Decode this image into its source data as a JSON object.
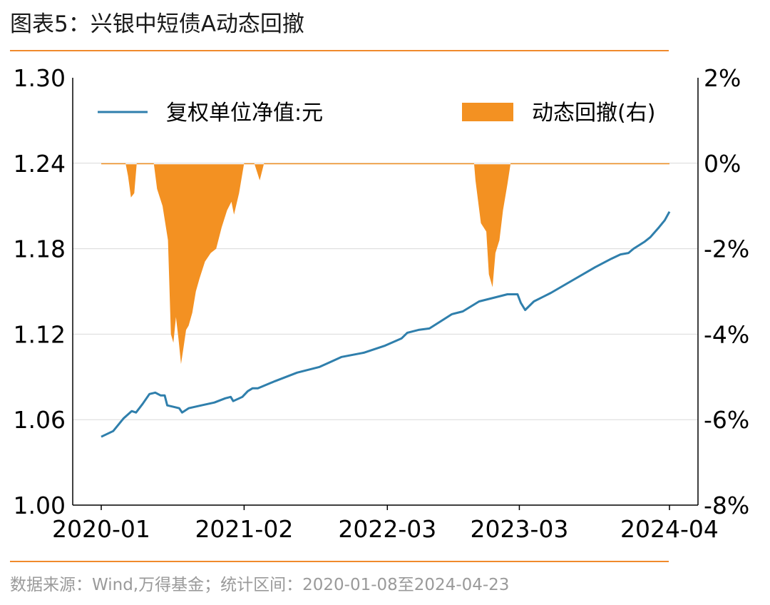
{
  "title": "图表5：兴银中短债A动态回撤",
  "source": "数据来源：Wind,万得基金；统计区间：2020-01-08至2024-04-23",
  "colors": {
    "nav_line": "#2f7fac",
    "drawdown_fill": "#f39122",
    "rule": "#f08a2c"
  },
  "chart_data": {
    "type": "line",
    "x_axis": {
      "type": "date",
      "range": [
        "2020-01-08",
        "2024-04-23"
      ],
      "tick_labels": [
        "2020-01",
        "2021-02",
        "2022-03",
        "2023-03",
        "2024-04"
      ],
      "tick_dates": [
        "2020-01-08",
        "2021-02-05",
        "2022-03-07",
        "2023-03-06",
        "2024-04-23"
      ]
    },
    "y_left": {
      "range": [
        1.0,
        1.3
      ],
      "ticks": [
        "1.00",
        "1.06",
        "1.12",
        "1.18",
        "1.24",
        "1.30"
      ]
    },
    "y_right": {
      "range": [
        -8,
        2
      ],
      "ticks": [
        "-8%",
        "-6%",
        "-4%",
        "-2%",
        "0%",
        "2%"
      ]
    },
    "grid": "horizontal",
    "legend": {
      "position": "top",
      "entries": [
        "复权单位净值:元",
        "动态回撤(右)"
      ]
    },
    "series": [
      {
        "name": "复权单位净值:元",
        "kind": "line",
        "axis": "left",
        "points": [
          [
            "2020-01-08",
            1.048
          ],
          [
            "2020-02-10",
            1.052
          ],
          [
            "2020-03-10",
            1.061
          ],
          [
            "2020-04-01",
            1.066
          ],
          [
            "2020-04-13",
            1.065
          ],
          [
            "2020-05-01",
            1.071
          ],
          [
            "2020-05-20",
            1.078
          ],
          [
            "2020-06-05",
            1.079
          ],
          [
            "2020-06-20",
            1.077
          ],
          [
            "2020-07-01",
            1.077
          ],
          [
            "2020-07-08",
            1.07
          ],
          [
            "2020-07-25",
            1.069
          ],
          [
            "2020-08-10",
            1.068
          ],
          [
            "2020-08-18",
            1.065
          ],
          [
            "2020-09-05",
            1.068
          ],
          [
            "2020-10-10",
            1.07
          ],
          [
            "2020-11-15",
            1.072
          ],
          [
            "2020-12-15",
            1.075
          ],
          [
            "2020-12-30",
            1.076
          ],
          [
            "2021-01-06",
            1.073
          ],
          [
            "2021-01-31",
            1.076
          ],
          [
            "2021-02-15",
            1.08
          ],
          [
            "2021-02-28",
            1.082
          ],
          [
            "2021-03-15",
            1.082
          ],
          [
            "2021-05-01",
            1.087
          ],
          [
            "2021-07-01",
            1.093
          ],
          [
            "2021-09-01",
            1.097
          ],
          [
            "2021-11-01",
            1.104
          ],
          [
            "2022-01-01",
            1.107
          ],
          [
            "2022-03-01",
            1.112
          ],
          [
            "2022-04-15",
            1.117
          ],
          [
            "2022-05-01",
            1.121
          ],
          [
            "2022-06-01",
            1.123
          ],
          [
            "2022-07-01",
            1.124
          ],
          [
            "2022-08-01",
            1.129
          ],
          [
            "2022-09-01",
            1.134
          ],
          [
            "2022-10-01",
            1.136
          ],
          [
            "2022-11-15",
            1.143
          ],
          [
            "2023-01-01",
            1.146
          ],
          [
            "2023-02-01",
            1.148
          ],
          [
            "2023-03-01",
            1.148
          ],
          [
            "2023-03-10",
            1.142
          ],
          [
            "2023-03-22",
            1.137
          ],
          [
            "2023-04-15",
            1.143
          ],
          [
            "2023-06-01",
            1.149
          ],
          [
            "2023-08-01",
            1.158
          ],
          [
            "2023-10-01",
            1.167
          ],
          [
            "2023-11-15",
            1.173
          ],
          [
            "2023-12-10",
            1.176
          ],
          [
            "2024-01-01",
            1.177
          ],
          [
            "2024-01-15",
            1.18
          ],
          [
            "2024-02-15",
            1.185
          ],
          [
            "2024-03-01",
            1.188
          ],
          [
            "2024-03-25",
            1.195
          ],
          [
            "2024-04-10",
            1.2
          ],
          [
            "2024-04-23",
            1.206
          ]
        ]
      },
      {
        "name": "动态回撤(右)",
        "kind": "area",
        "axis": "right",
        "points": [
          [
            "2020-01-08",
            0.0
          ],
          [
            "2020-03-15",
            0.0
          ],
          [
            "2020-03-22",
            -0.3
          ],
          [
            "2020-03-30",
            -0.8
          ],
          [
            "2020-04-08",
            -0.7
          ],
          [
            "2020-04-15",
            0.0
          ],
          [
            "2020-06-01",
            0.0
          ],
          [
            "2020-06-10",
            -0.6
          ],
          [
            "2020-06-25",
            -1.0
          ],
          [
            "2020-07-10",
            -1.8
          ],
          [
            "2020-07-18",
            -4.0
          ],
          [
            "2020-07-25",
            -4.2
          ],
          [
            "2020-08-01",
            -3.6
          ],
          [
            "2020-08-08",
            -4.1
          ],
          [
            "2020-08-15",
            -4.7
          ],
          [
            "2020-08-22",
            -4.3
          ],
          [
            "2020-08-29",
            -3.9
          ],
          [
            "2020-09-05",
            -3.8
          ],
          [
            "2020-09-15",
            -3.5
          ],
          [
            "2020-09-25",
            -3.0
          ],
          [
            "2020-10-05",
            -2.7
          ],
          [
            "2020-10-20",
            -2.3
          ],
          [
            "2020-11-05",
            -2.1
          ],
          [
            "2020-11-20",
            -2.0
          ],
          [
            "2020-12-05",
            -1.5
          ],
          [
            "2020-12-20",
            -1.1
          ],
          [
            "2021-01-01",
            -0.9
          ],
          [
            "2021-01-08",
            -1.2
          ],
          [
            "2021-01-22",
            -0.7
          ],
          [
            "2021-02-05",
            0.0
          ],
          [
            "2021-03-05",
            0.0
          ],
          [
            "2021-03-20",
            -0.4
          ],
          [
            "2021-04-01",
            0.0
          ],
          [
            "2022-11-01",
            0.0
          ],
          [
            "2022-11-05",
            -0.4
          ],
          [
            "2022-11-20",
            -1.4
          ],
          [
            "2022-12-05",
            -1.6
          ],
          [
            "2022-12-12",
            -2.6
          ],
          [
            "2022-12-22",
            -2.9
          ],
          [
            "2022-12-30",
            -2.1
          ],
          [
            "2023-01-10",
            -1.8
          ],
          [
            "2023-01-20",
            -1.1
          ],
          [
            "2023-02-01",
            -0.5
          ],
          [
            "2023-02-10",
            0.0
          ],
          [
            "2024-04-23",
            0.0
          ]
        ]
      }
    ]
  }
}
